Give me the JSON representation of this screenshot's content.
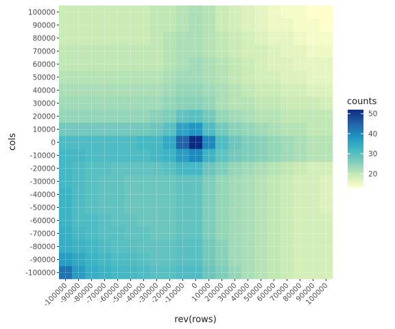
{
  "chart_data": {
    "type": "heatmap",
    "xlabel": "rev(rows)",
    "ylabel": "cols",
    "x_categories": [
      "-100000",
      "-90000",
      "-80000",
      "-70000",
      "-60000",
      "-50000",
      "-40000",
      "-30000",
      "-20000",
      "-10000",
      "0",
      "10000",
      "20000",
      "30000",
      "40000",
      "50000",
      "60000",
      "70000",
      "80000",
      "90000",
      "100000"
    ],
    "y_categories": [
      "-100000",
      "-90000",
      "-80000",
      "-70000",
      "-60000",
      "-50000",
      "-40000",
      "-30000",
      "-20000",
      "-10000",
      "0",
      "10000",
      "20000",
      "30000",
      "40000",
      "50000",
      "60000",
      "70000",
      "80000",
      "90000",
      "100000"
    ],
    "values": [
      [
        43,
        37,
        34,
        33,
        32,
        32,
        31,
        30,
        30,
        31,
        31,
        28,
        26,
        24,
        22,
        21,
        20,
        19,
        18,
        18,
        18
      ],
      [
        37,
        35,
        33,
        32,
        31,
        31,
        30,
        29,
        29,
        30,
        30,
        27,
        25,
        23,
        22,
        21,
        20,
        19,
        18,
        18,
        18
      ],
      [
        34,
        33,
        32,
        31,
        30,
        30,
        29,
        29,
        29,
        30,
        30,
        27,
        25,
        23,
        22,
        21,
        20,
        19,
        18,
        18,
        18
      ],
      [
        34,
        32,
        31,
        30,
        30,
        29,
        29,
        28,
        28,
        29,
        29,
        26,
        24,
        23,
        22,
        21,
        20,
        19,
        18,
        18,
        18
      ],
      [
        33,
        31,
        31,
        30,
        29,
        29,
        28,
        28,
        28,
        29,
        29,
        26,
        24,
        23,
        22,
        21,
        20,
        19,
        18,
        18,
        18
      ],
      [
        33,
        31,
        30,
        29,
        29,
        28,
        28,
        28,
        28,
        29,
        29,
        26,
        24,
        23,
        22,
        21,
        20,
        19,
        18,
        18,
        17
      ],
      [
        33,
        31,
        30,
        29,
        29,
        28,
        28,
        28,
        28,
        29,
        29,
        26,
        24,
        23,
        22,
        21,
        20,
        19,
        18,
        18,
        17
      ],
      [
        32,
        31,
        30,
        29,
        29,
        28,
        28,
        28,
        28,
        29,
        29,
        26,
        24,
        23,
        22,
        21,
        20,
        19,
        18,
        18,
        17
      ],
      [
        32,
        31,
        30,
        30,
        29,
        29,
        29,
        29,
        30,
        32,
        32,
        28,
        26,
        24,
        23,
        22,
        21,
        20,
        19,
        18,
        18
      ],
      [
        32,
        32,
        31,
        31,
        31,
        31,
        31,
        32,
        33,
        37,
        40,
        33,
        29,
        27,
        26,
        25,
        24,
        23,
        22,
        21,
        21
      ],
      [
        31,
        31,
        31,
        31,
        31,
        31,
        32,
        32,
        35,
        45,
        52,
        40,
        31,
        28,
        26,
        25,
        24,
        23,
        22,
        21,
        21
      ],
      [
        27,
        27,
        27,
        27,
        27,
        27,
        27,
        28,
        30,
        36,
        38,
        31,
        27,
        25,
        24,
        23,
        22,
        21,
        21,
        20,
        20
      ],
      [
        24,
        24,
        24,
        24,
        24,
        24,
        24,
        25,
        26,
        29,
        30,
        27,
        24,
        23,
        22,
        21,
        21,
        20,
        20,
        20,
        20
      ],
      [
        23,
        23,
        23,
        23,
        23,
        23,
        23,
        23,
        24,
        25,
        25,
        24,
        22,
        21,
        21,
        20,
        20,
        19,
        19,
        19,
        18
      ],
      [
        22,
        22,
        22,
        22,
        22,
        22,
        22,
        22,
        23,
        24,
        24,
        23,
        22,
        21,
        20,
        19,
        19,
        18,
        18,
        17,
        17
      ],
      [
        21,
        21,
        21,
        21,
        21,
        21,
        21,
        21,
        22,
        23,
        23,
        22,
        21,
        20,
        19,
        18,
        18,
        17,
        17,
        16,
        16
      ],
      [
        20,
        20,
        20,
        20,
        20,
        20,
        20,
        20,
        21,
        22,
        23,
        22,
        21,
        20,
        19,
        18,
        17,
        17,
        16,
        16,
        16
      ],
      [
        20,
        20,
        20,
        20,
        20,
        20,
        20,
        20,
        21,
        22,
        22,
        21,
        20,
        19,
        18,
        18,
        17,
        16,
        16,
        15,
        15
      ],
      [
        19,
        19,
        19,
        19,
        19,
        19,
        19,
        20,
        21,
        22,
        22,
        21,
        20,
        19,
        18,
        17,
        16,
        16,
        15,
        14,
        14
      ],
      [
        19,
        19,
        19,
        19,
        19,
        19,
        19,
        20,
        20,
        21,
        22,
        21,
        19,
        18,
        17,
        16,
        15,
        15,
        14,
        14,
        13
      ],
      [
        19,
        19,
        19,
        19,
        19,
        19,
        19,
        20,
        20,
        21,
        22,
        21,
        19,
        18,
        17,
        16,
        15,
        14,
        14,
        13,
        13
      ]
    ],
    "legend": {
      "title": "counts",
      "ticks": [
        "20",
        "30",
        "40",
        "50"
      ],
      "position": "right"
    },
    "scale_min": 13,
    "scale_max": 52,
    "color_stops": [
      "#ffffcc",
      "#c7e9b4",
      "#7fcdbb",
      "#41b6c4",
      "#1d91c0",
      "#225ea8",
      "#0c2c84"
    ],
    "grid": true
  }
}
